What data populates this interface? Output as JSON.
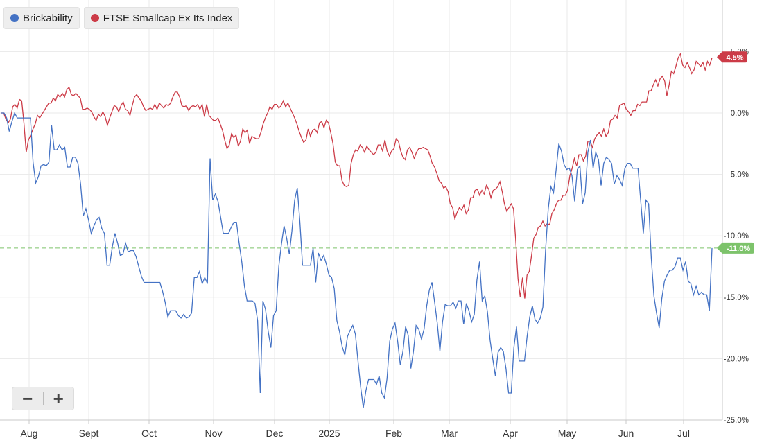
{
  "legend": {
    "series1": "Brickability",
    "series2": "FTSE Smallcap Ex Its Index"
  },
  "zoom": {
    "out_label": "−",
    "in_label": "+"
  },
  "colors": {
    "series1": "#4472c4",
    "series2": "#cc3b47",
    "current": "#7dc36b",
    "grid": "#e8e8e8"
  },
  "chart_data": {
    "type": "line",
    "ylim": [
      -25,
      10
    ],
    "y_ticks": [
      5,
      0,
      -5,
      -10,
      -15,
      -20,
      -25
    ],
    "y_tick_labels": [
      "5.0%",
      "0.0%",
      "-5.0%",
      "-10.0%",
      "-15.0%",
      "-20.0%",
      "-25.0%"
    ],
    "x_tick_labels": [
      "Aug",
      "Sept",
      "Oct",
      "Nov",
      "Dec",
      "2025",
      "Feb",
      "Mar",
      "Apr",
      "May",
      "Jun",
      "Jul"
    ],
    "current_labels": {
      "series1": "-11.0%",
      "series2": "4.5%"
    },
    "current_values": {
      "series1": -11.0,
      "series2": 4.5
    },
    "grid": true,
    "legend_position": "top-left",
    "series": [
      {
        "name": "Brickability",
        "color": "#4472c4",
        "values": [
          0,
          0,
          -0.4,
          -1.5,
          -0.7,
          0,
          -0.4,
          -0.4,
          -0.4,
          -0.4,
          -0.4,
          -0.4,
          -4,
          -5.7,
          -5.2,
          -4.3,
          -4.2,
          -4.3,
          -4,
          -1,
          -3,
          -3,
          -2.6,
          -3,
          -2.8,
          -4.4,
          -4.4,
          -3.6,
          -3.6,
          -4.1,
          -5.8,
          -8.4,
          -7.8,
          -8.7,
          -9.8,
          -9.2,
          -8.7,
          -8.5,
          -9.4,
          -9.8,
          -12.4,
          -12.4,
          -10.9,
          -9.8,
          -10.6,
          -11.6,
          -11.5,
          -10.6,
          -11.3,
          -11.2,
          -11.2,
          -11.7,
          -12.5,
          -13.3,
          -13.8,
          -13.8,
          -13.8,
          -13.8,
          -13.8,
          -13.8,
          -13.8,
          -14.5,
          -15.4,
          -16.6,
          -16.1,
          -16.1,
          -16.1,
          -16.5,
          -16.7,
          -16.4,
          -16.7,
          -16.6,
          -16.3,
          -13.4,
          -13.4,
          -12.9,
          -13.9,
          -13.4,
          -13.9,
          -3.7,
          -7.1,
          -6.6,
          -7.2,
          -8.5,
          -9.8,
          -9.8,
          -9.8,
          -9.3,
          -8.9,
          -8.9,
          -10.6,
          -12.1,
          -14.1,
          -15.3,
          -15.3,
          -15.3,
          -15.5,
          -16.9,
          -22.8,
          -15.3,
          -16,
          -17.8,
          -19.1,
          -16.5,
          -16.1,
          -12.5,
          -10.7,
          -9.2,
          -10.2,
          -11.5,
          -9.6,
          -7.1,
          -6.1,
          -8.9,
          -12.4,
          -12.4,
          -12.4,
          -12.4,
          -11,
          -13.8,
          -11.4,
          -12,
          -11.6,
          -12.3,
          -13.2,
          -13.4,
          -14.3,
          -16.9,
          -17.8,
          -19,
          -19.7,
          -18.2,
          -17.7,
          -17.3,
          -18,
          -20.2,
          -22.3,
          -24,
          -22.6,
          -21.7,
          -21.7,
          -21.7,
          -22.1,
          -21.4,
          -22.8,
          -23.2,
          -21.6,
          -18.6,
          -17.6,
          -17.1,
          -18.6,
          -20.5,
          -19.4,
          -17.4,
          -18.1,
          -20.8,
          -19.4,
          -17.3,
          -17.6,
          -18.4,
          -17.6,
          -15.7,
          -14.4,
          -13.8,
          -15.4,
          -17.1,
          -19.4,
          -17,
          -15.6,
          -15.7,
          -15.7,
          -15.4,
          -15.9,
          -15.3,
          -15.3,
          -17.2,
          -15.5,
          -16.1,
          -17,
          -16.4,
          -13.6,
          -12.1,
          -15.3,
          -14.9,
          -16.2,
          -18.5,
          -20,
          -21.4,
          -19.5,
          -19.1,
          -19.4,
          -20.8,
          -22.8,
          -22.8,
          -19.1,
          -17.4,
          -20.2,
          -20.2,
          -20.2,
          -18.2,
          -16.6,
          -15.7,
          -16.8,
          -17.1,
          -16.7,
          -15.8,
          -11.2,
          -7.8,
          -6,
          -6.5,
          -4.6,
          -2.5,
          -3.1,
          -4.2,
          -4.6,
          -4.5,
          -5.1,
          -7.2,
          -4.6,
          -4.3,
          -7.4,
          -6.5,
          -3.2,
          -2.2,
          -4.5,
          -3.2,
          -3.8,
          -5.9,
          -4.1,
          -3.6,
          -3.8,
          -4.1,
          -5.8,
          -5.1,
          -5.4,
          -5.9,
          -4.5,
          -4.1,
          -4.1,
          -4.5,
          -4.5,
          -4.5,
          -7.1,
          -9.8,
          -7.1,
          -7.4,
          -11.8,
          -14.9,
          -16.3,
          -17.5,
          -15.1,
          -13.7,
          -13.2,
          -12.8,
          -12.8,
          -12.5,
          -11.8,
          -11.8,
          -12.8,
          -12.1,
          -13.7,
          -13.9,
          -14.8,
          -14.1,
          -14.8,
          -14.6,
          -14.8,
          -14.8,
          -16.1,
          -11.0
        ]
      },
      {
        "name": "FTSE Smallcap Ex Its Index",
        "color": "#cc3b47",
        "values": [
          0,
          0,
          -0.5,
          -0.8,
          -0.5,
          0.5,
          0.7,
          0.4,
          1.1,
          1,
          -0.8,
          -3.2,
          -2.2,
          -1.8,
          -1.3,
          -0.9,
          -0.2,
          -0.4,
          -0.1,
          0.2,
          0.5,
          0.8,
          0.8,
          1.2,
          1,
          1.5,
          1.3,
          1.6,
          1.3,
          1.9,
          2.1,
          1.5,
          1.4,
          1.6,
          1.4,
          1.2,
          0.3,
          0.3,
          0.4,
          0.3,
          0.1,
          -0.3,
          -0.6,
          -0.1,
          -0.3,
          0.1,
          -0.3,
          -1,
          -0.4,
          0.1,
          0.6,
          0.5,
          0.1,
          0.6,
          0.9,
          0.3,
          0.2,
          -0.2,
          0.6,
          1.3,
          1.5,
          1.2,
          1,
          0.5,
          0.2,
          0.3,
          0.4,
          0.3,
          0.7,
          0.3,
          0.8,
          0.6,
          0.4,
          0.7,
          0.6,
          0.8,
          1.3,
          1.7,
          1.7,
          1.3,
          0.6,
          0.5,
          0.6,
          0.2,
          0.5,
          0.6,
          0.5,
          0.7,
          0.3,
          0.7,
          -0.3,
          0.7,
          -0.2,
          -0.4,
          -0.6,
          -0.6,
          -0.4,
          -0.9,
          -1.4,
          -2.2,
          -2.9,
          -2.6,
          -1.7,
          -2,
          -1.8,
          -2.7,
          -2.3,
          -1.3,
          -1.6,
          -1.4,
          -2.5,
          -1.9,
          -2,
          -2.1,
          -2.1,
          -1.6,
          -0.9,
          -0.4,
          0,
          0.5,
          0.3,
          0.7,
          0.7,
          0.4,
          0.6,
          1,
          0.5,
          0.8,
          0.4,
          0,
          -0.4,
          -0.9,
          -1.5,
          -2,
          -2.4,
          -2.2,
          -1.3,
          -1.9,
          -1.4,
          -1.3,
          -1.6,
          -0.8,
          -0.7,
          -1.2,
          -0.6,
          -0.8,
          -1.6,
          -2.5,
          -4,
          -4.3,
          -4.3,
          -5.5,
          -5.9,
          -6,
          -5.9,
          -4.1,
          -3.4,
          -3,
          -3.1,
          -2.6,
          -2.8,
          -3.2,
          -2.7,
          -3,
          -3.2,
          -3.4,
          -3.2,
          -2.6,
          -2.6,
          -3.1,
          -2.2,
          -3.1,
          -3.5,
          -3.1,
          -2.9,
          -2.1,
          -2.3,
          -3.1,
          -3.6,
          -3.8,
          -3,
          -2.8,
          -3.2,
          -3.7,
          -3.2,
          -2.9,
          -2.9,
          -2.8,
          -2.9,
          -3,
          -3.5,
          -4.1,
          -4.4,
          -4.9,
          -5.5,
          -5.7,
          -6.1,
          -6,
          -6.4,
          -7.4,
          -7.7,
          -8.6,
          -8.1,
          -7.7,
          -7.9,
          -7.5,
          -8.2,
          -7.9,
          -6.9,
          -6.9,
          -6.3,
          -6.2,
          -6.7,
          -6.3,
          -6.6,
          -5.9,
          -6.2,
          -6.9,
          -6.3,
          -6.2,
          -6,
          -5.6,
          -6.4,
          -7.4,
          -8,
          -7.7,
          -7.4,
          -7.8,
          -10.4,
          -13.5,
          -15,
          -13.4,
          -15.1,
          -13.2,
          -12.9,
          -11.6,
          -10.2,
          -9.9,
          -9.3,
          -9.2,
          -8.8,
          -9.2,
          -9,
          -9.1,
          -8.2,
          -7.9,
          -7.4,
          -7.1,
          -7.1,
          -6.7,
          -6.7,
          -6.3,
          -5.1,
          -4.5,
          -3.7,
          -4.3,
          -3.4,
          -3.4,
          -3.9,
          -3.5,
          -2.3,
          -2.3,
          -2.8,
          -2.1,
          -1.8,
          -1.6,
          -1.9,
          -1.3,
          -1.9,
          -1.6,
          -0.6,
          -0.5,
          -0.2,
          -0.4,
          0.6,
          0.7,
          0.8,
          0.3,
          0.1,
          -0.2,
          0.2,
          0.2,
          0.7,
          0.6,
          0.9,
          0.9,
          0.9,
          1.8,
          1.8,
          2.3,
          2.7,
          2.2,
          2.8,
          3,
          2.6,
          1.4,
          2.3,
          3.4,
          3.2,
          3.8,
          4.5,
          4.8,
          3.9,
          3.7,
          4.1,
          3.7,
          3.2,
          3.5,
          4.2,
          4,
          3.8,
          4.1,
          3.5,
          4.2,
          3.9,
          4.5
        ]
      }
    ]
  }
}
